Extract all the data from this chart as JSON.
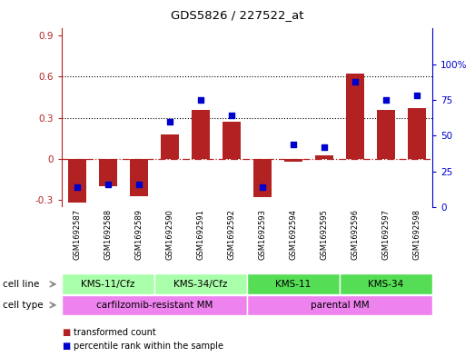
{
  "title": "GDS5826 / 227522_at",
  "samples": [
    "GSM1692587",
    "GSM1692588",
    "GSM1692589",
    "GSM1692590",
    "GSM1692591",
    "GSM1692592",
    "GSM1692593",
    "GSM1692594",
    "GSM1692595",
    "GSM1692596",
    "GSM1692597",
    "GSM1692598"
  ],
  "bar_values": [
    -0.32,
    -0.2,
    -0.27,
    0.18,
    0.36,
    0.27,
    -0.28,
    -0.02,
    0.03,
    0.62,
    0.36,
    0.37
  ],
  "dot_values_pct": [
    14,
    16,
    16,
    60,
    75,
    64,
    14,
    44,
    42,
    88,
    75,
    78
  ],
  "bar_color": "#b22222",
  "dot_color": "#0000cd",
  "ylim_left": [
    -0.35,
    0.95
  ],
  "ylim_right": [
    0,
    125
  ],
  "yticks_left": [
    -0.3,
    0.0,
    0.3,
    0.6,
    0.9
  ],
  "yticks_right": [
    0,
    25,
    50,
    75,
    100
  ],
  "hline_y": 0.0,
  "dotted_lines": [
    0.3,
    0.6
  ],
  "cell_line_groups": [
    {
      "label": "KMS-11/Cfz",
      "start": 0,
      "end": 3,
      "color": "#aaffaa"
    },
    {
      "label": "KMS-34/Cfz",
      "start": 3,
      "end": 6,
      "color": "#aaffaa"
    },
    {
      "label": "KMS-11",
      "start": 6,
      "end": 9,
      "color": "#55dd55"
    },
    {
      "label": "KMS-34",
      "start": 9,
      "end": 12,
      "color": "#55dd55"
    }
  ],
  "cell_type_groups": [
    {
      "label": "carfilzomib-resistant MM",
      "start": 0,
      "end": 6,
      "color": "#ee82ee"
    },
    {
      "label": "parental MM",
      "start": 6,
      "end": 12,
      "color": "#ee82ee"
    }
  ],
  "cell_line_label": "cell line",
  "cell_type_label": "cell type",
  "legend_bar_label": "transformed count",
  "legend_dot_label": "percentile rank within the sample",
  "bg_color": "#c8c8c8",
  "plot_bg_color": "#ffffff",
  "right_axis_color": "#0000cd",
  "left_axis_color": "#b22222"
}
